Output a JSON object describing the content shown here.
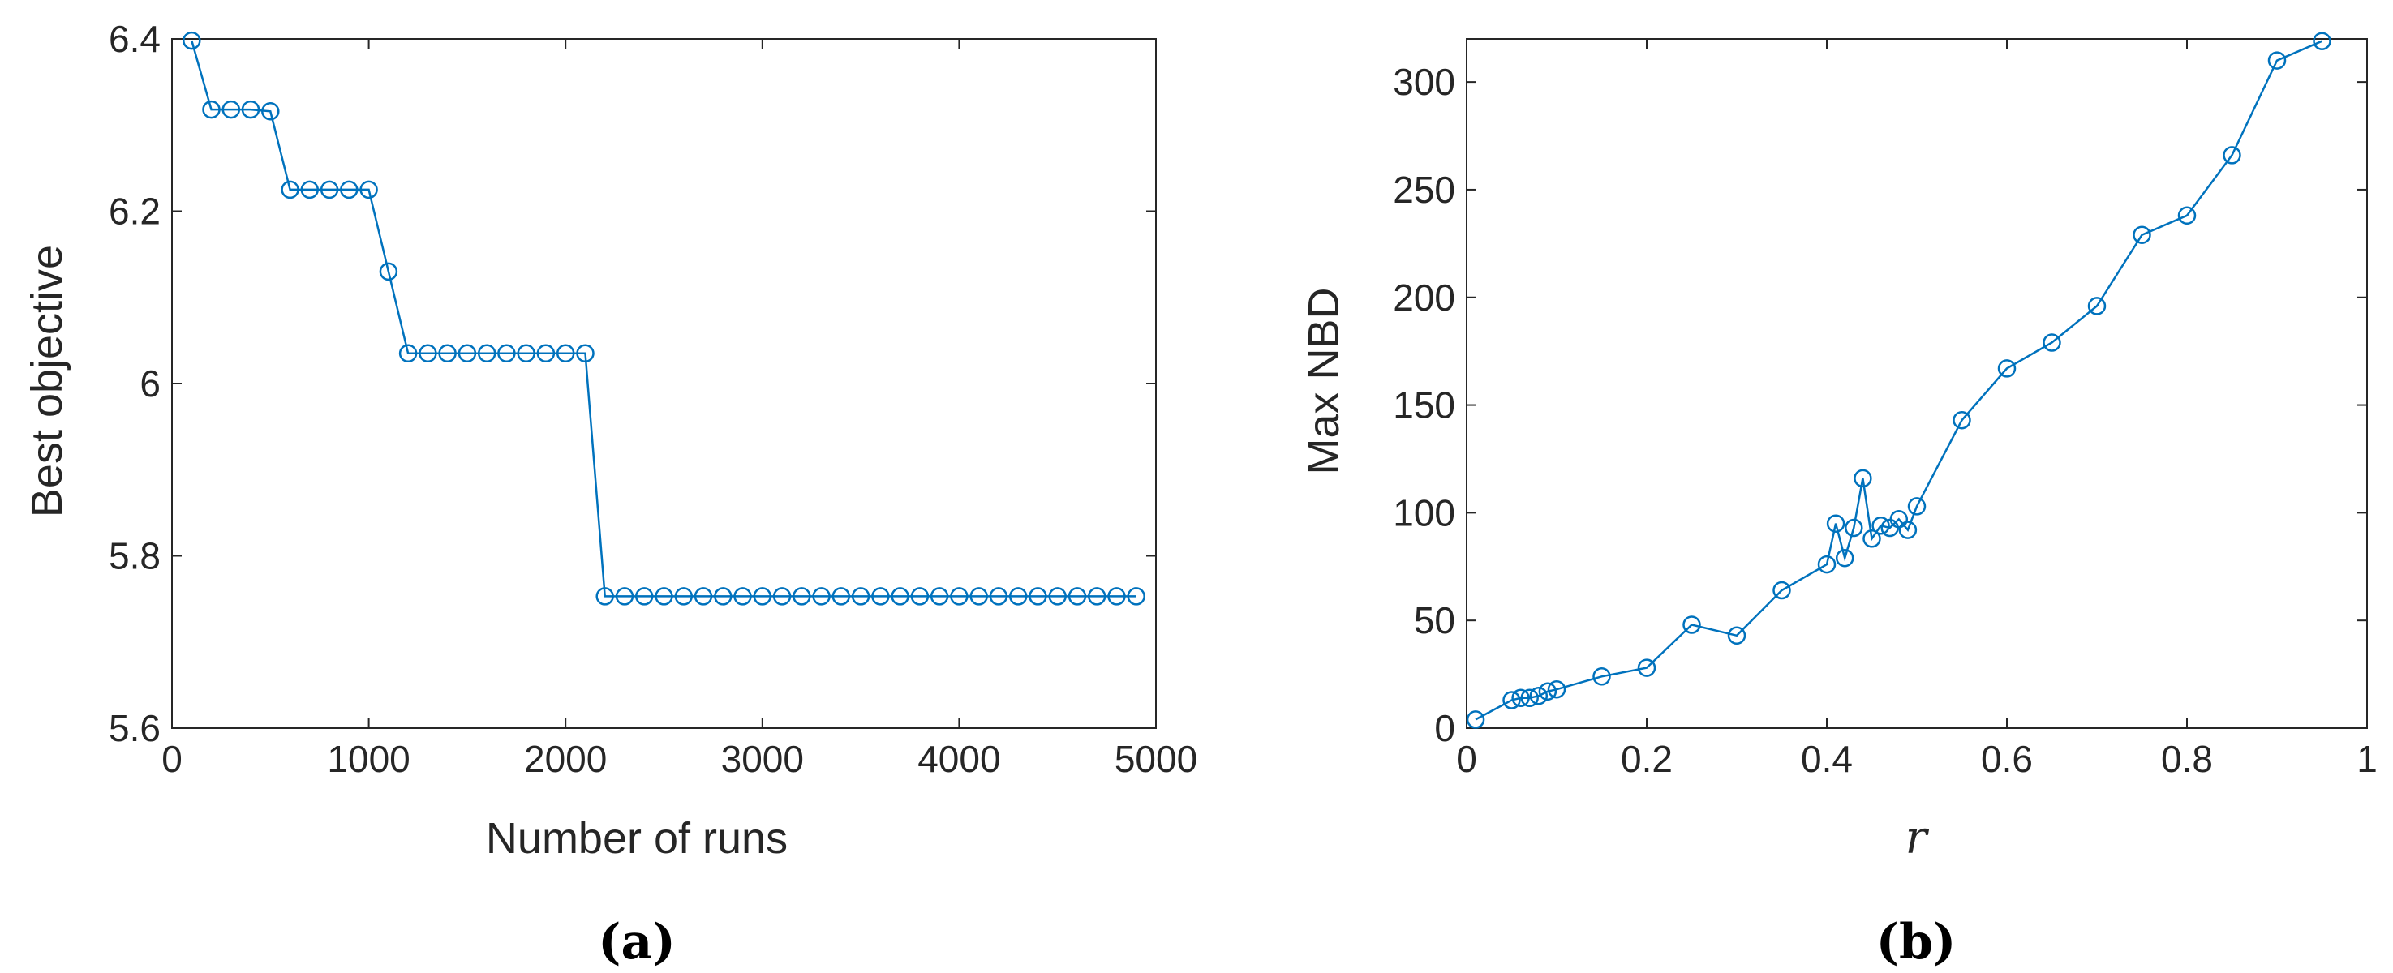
{
  "colors": {
    "series": "#0072BD",
    "axis": "#262626",
    "background": "#ffffff"
  },
  "chart_data": [
    {
      "panel_label": "(a)",
      "type": "line",
      "marker": "circle",
      "xlabel": "Number of runs",
      "ylabel": "Best objective",
      "xlim": [
        0,
        5000
      ],
      "ylim": [
        5.6,
        6.4
      ],
      "xticks": [
        "0",
        "1000",
        "2000",
        "3000",
        "4000",
        "5000"
      ],
      "yticks": [
        "5.6",
        "5.8",
        "6",
        "6.2",
        "6.4"
      ],
      "x": [
        100,
        200,
        300,
        400,
        500,
        600,
        700,
        800,
        900,
        1000,
        1100,
        1200,
        1300,
        1400,
        1500,
        1600,
        1700,
        1800,
        1900,
        2000,
        2100,
        2200,
        2300,
        2400,
        2500,
        2600,
        2700,
        2800,
        2900,
        3000,
        3100,
        3200,
        3300,
        3400,
        3500,
        3600,
        3700,
        3800,
        3900,
        4000,
        4100,
        4200,
        4300,
        4400,
        4500,
        4600,
        4700,
        4800,
        4900
      ],
      "y": [
        6.398,
        6.318,
        6.318,
        6.318,
        6.316,
        6.225,
        6.225,
        6.225,
        6.225,
        6.225,
        6.13,
        6.035,
        6.035,
        6.035,
        6.035,
        6.035,
        6.035,
        6.035,
        6.035,
        6.035,
        6.035,
        5.753,
        5.753,
        5.753,
        5.753,
        5.753,
        5.753,
        5.753,
        5.753,
        5.753,
        5.753,
        5.753,
        5.753,
        5.753,
        5.753,
        5.753,
        5.753,
        5.753,
        5.753,
        5.753,
        5.753,
        5.753,
        5.753,
        5.753,
        5.753,
        5.753,
        5.753,
        5.753,
        5.753
      ]
    },
    {
      "panel_label": "(b)",
      "type": "line",
      "marker": "circle",
      "xlabel": "r",
      "ylabel": "Max NBD",
      "xlim": [
        0,
        1
      ],
      "ylim": [
        0,
        320
      ],
      "xticks": [
        "0",
        "0.2",
        "0.4",
        "0.6",
        "0.8",
        "1"
      ],
      "yticks": [
        "0",
        "50",
        "100",
        "150",
        "200",
        "250",
        "300"
      ],
      "x": [
        0.01,
        0.05,
        0.06,
        0.07,
        0.08,
        0.09,
        0.1,
        0.15,
        0.2,
        0.25,
        0.3,
        0.35,
        0.4,
        0.41,
        0.42,
        0.43,
        0.44,
        0.45,
        0.46,
        0.47,
        0.48,
        0.49,
        0.5,
        0.55,
        0.6,
        0.65,
        0.7,
        0.75,
        0.8,
        0.85,
        0.9,
        0.95
      ],
      "y": [
        4,
        13,
        14,
        14,
        15,
        17,
        18,
        24,
        28,
        48,
        43,
        64,
        76,
        95,
        79,
        93,
        116,
        88,
        94,
        93,
        97,
        92,
        103,
        143,
        167,
        179,
        196,
        229,
        238,
        266,
        310,
        319
      ]
    }
  ]
}
